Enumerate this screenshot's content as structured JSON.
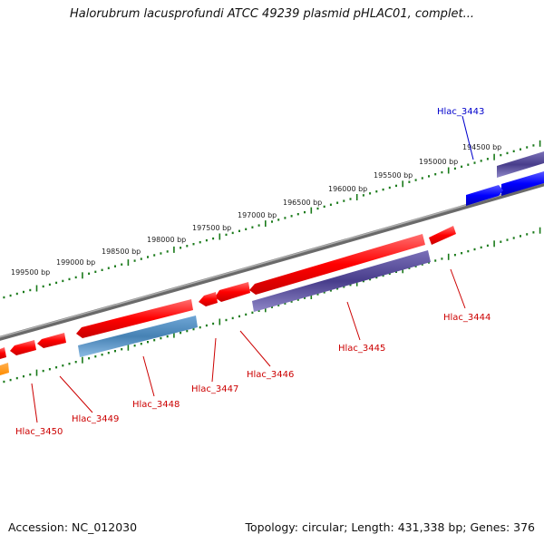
{
  "title": "Halorubrum lacusprofundi ATCC 49239 plasmid pHLAC01, complet...",
  "footer": {
    "accession": "Accession: NC_012030",
    "topology": "Topology: circular; Length: 431,338 bp; Genes: 376"
  },
  "colors": {
    "backbone": "#808080",
    "ticks": "#1a7a1a",
    "gene_red": "#ff0000",
    "gene_navy": "#483d8b",
    "gene_steel": "#4682b4",
    "gene_blue": "#0000ff",
    "gene_orange": "#ff8c00",
    "label_red": "#cc0000",
    "label_blue": "#0000cc"
  },
  "ruler": [
    "194500 bp",
    "195000 bp",
    "195500 bp",
    "196000 bp",
    "196500 bp",
    "197000 bp",
    "197500 bp",
    "198000 bp",
    "198500 bp",
    "199000 bp",
    "199500 bp"
  ],
  "genes": [
    {
      "id": "Hlac_3443",
      "color": "blue"
    },
    {
      "id": "Hlac_3444",
      "color": "red"
    },
    {
      "id": "Hlac_3445",
      "color": "red"
    },
    {
      "id": "Hlac_3446",
      "color": "red"
    },
    {
      "id": "Hlac_3447",
      "color": "red"
    },
    {
      "id": "Hlac_3448",
      "color": "red"
    },
    {
      "id": "Hlac_3449",
      "color": "red"
    },
    {
      "id": "Hlac_3450",
      "color": "red"
    }
  ]
}
